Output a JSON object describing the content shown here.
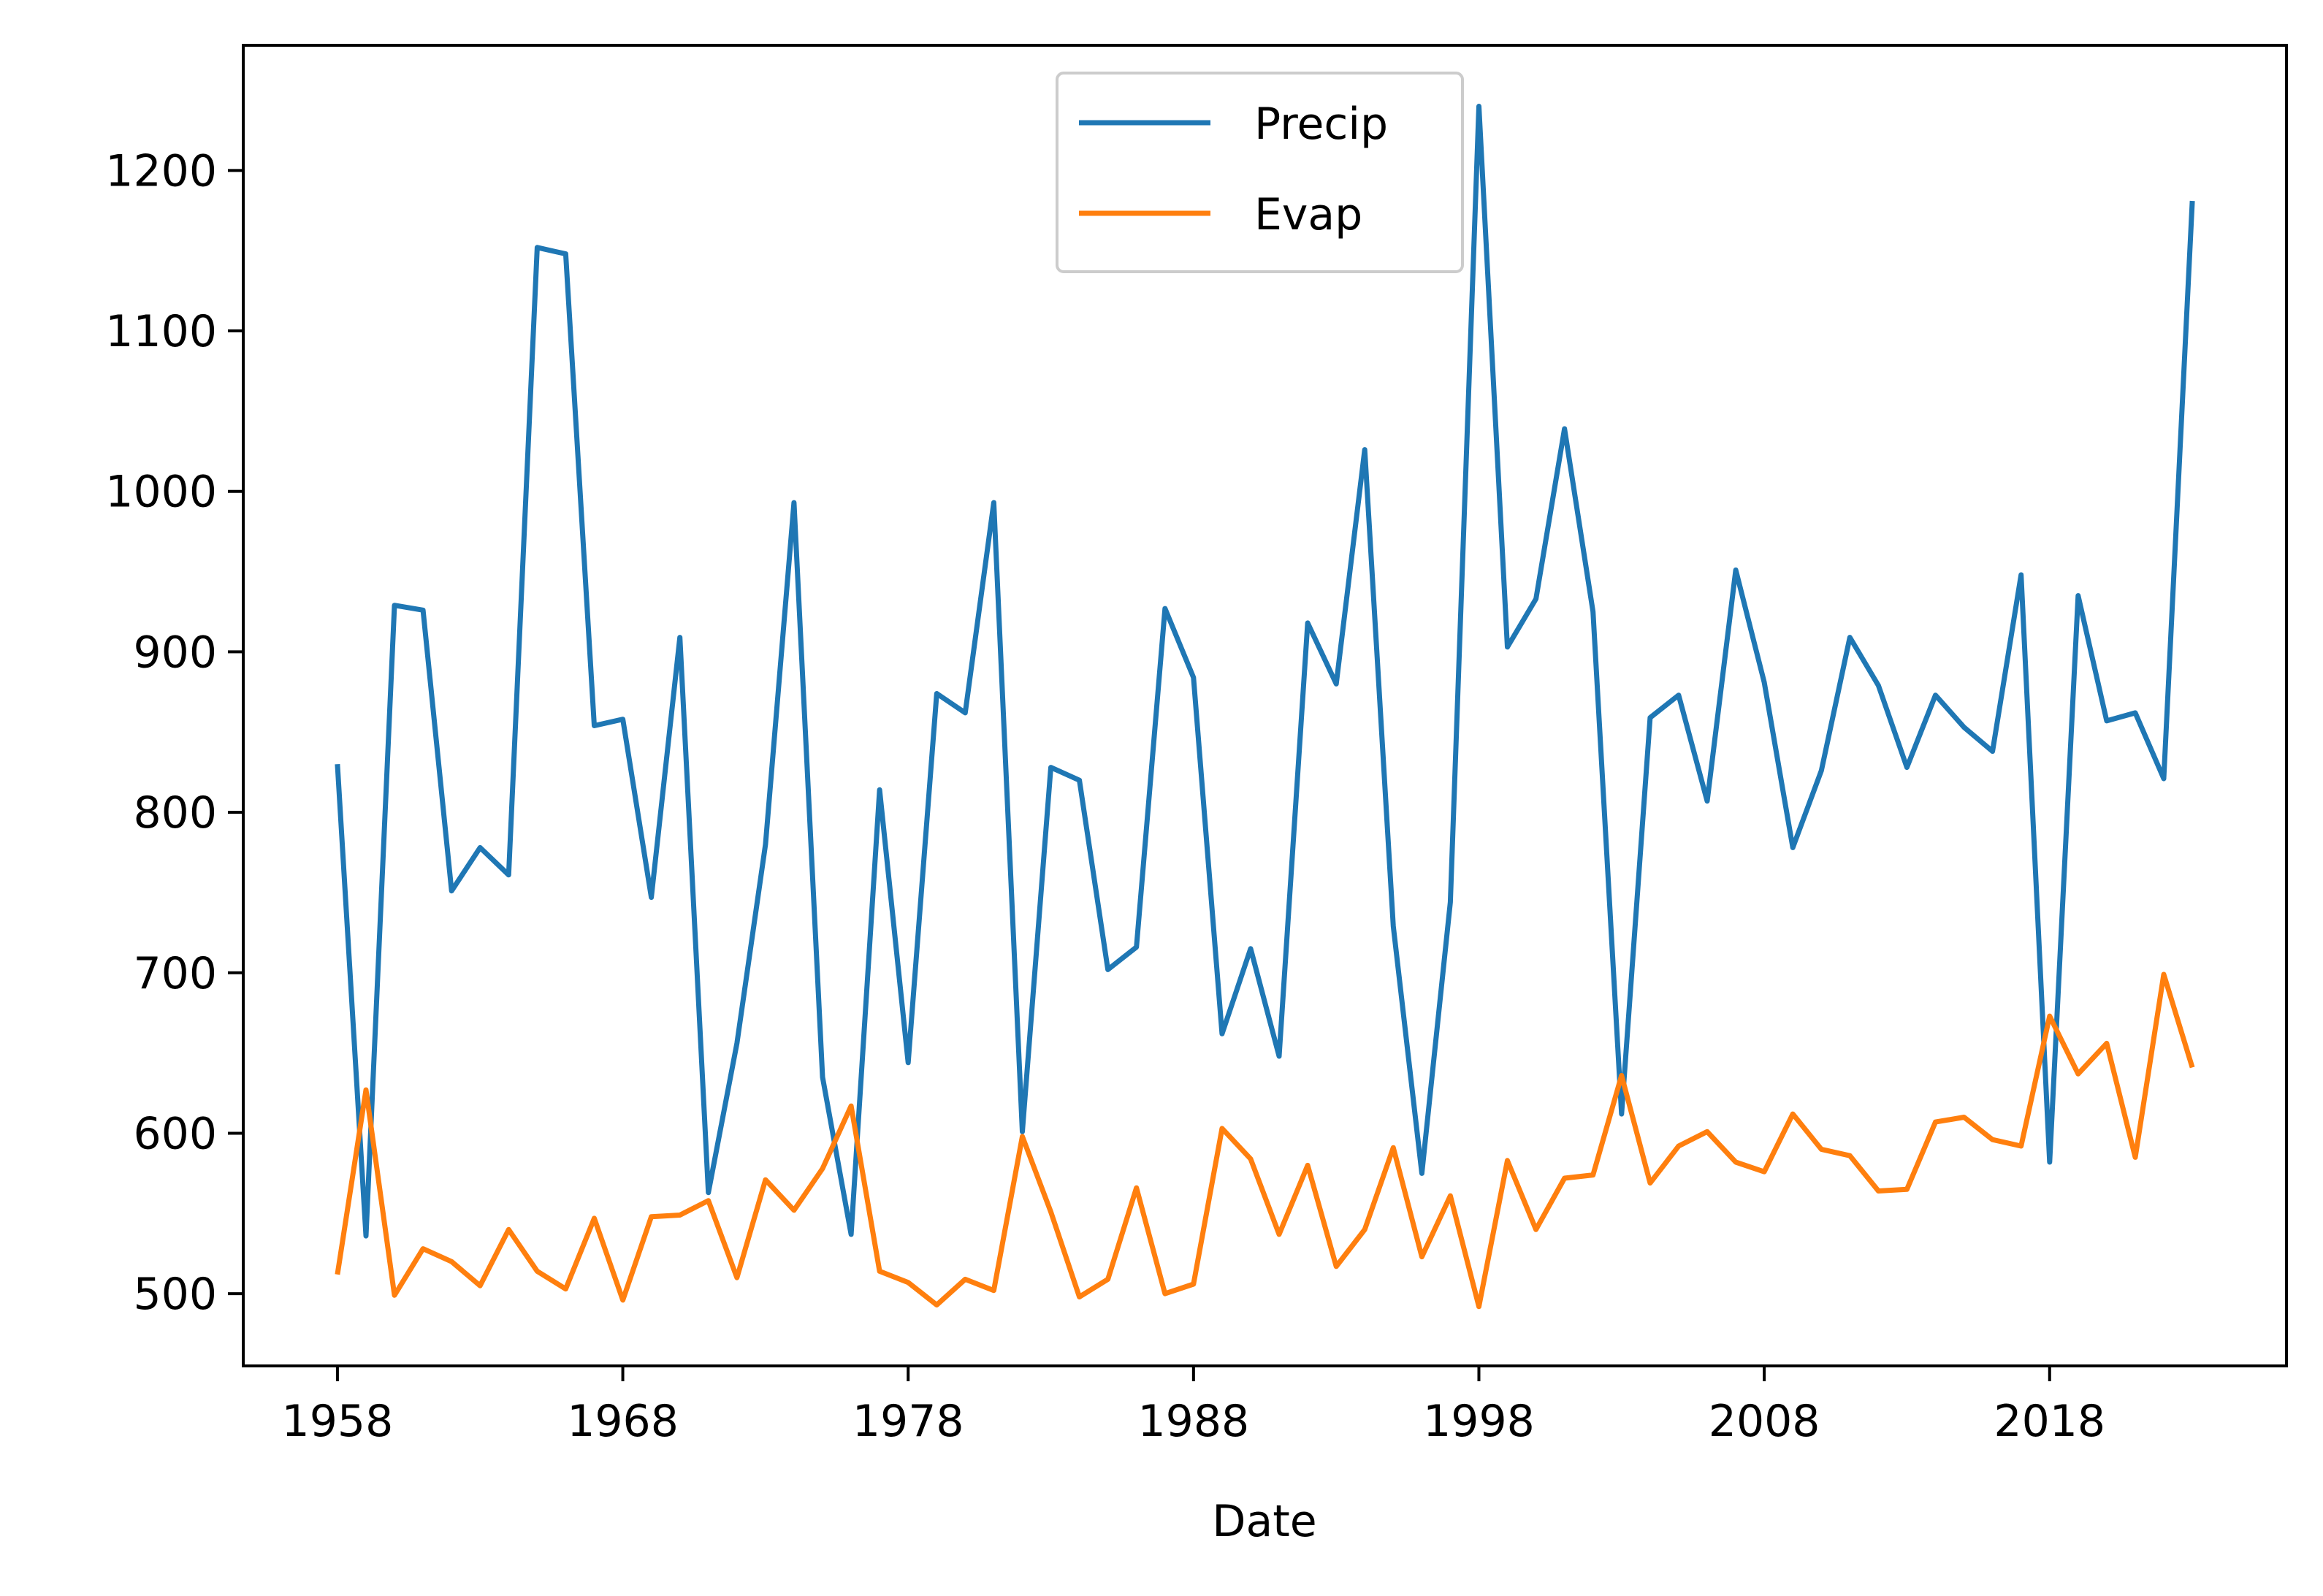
{
  "chart_data": {
    "type": "line",
    "title": "",
    "xlabel": "Date",
    "ylabel": "",
    "x": [
      1958,
      1959,
      1960,
      1961,
      1962,
      1963,
      1964,
      1965,
      1966,
      1967,
      1968,
      1969,
      1970,
      1971,
      1972,
      1973,
      1974,
      1975,
      1976,
      1977,
      1978,
      1979,
      1980,
      1981,
      1982,
      1983,
      1984,
      1985,
      1986,
      1987,
      1988,
      1989,
      1990,
      1991,
      1992,
      1993,
      1994,
      1995,
      1996,
      1997,
      1998,
      1999,
      2000,
      2001,
      2002,
      2003,
      2004,
      2005,
      2006,
      2007,
      2008,
      2009,
      2010,
      2011,
      2012,
      2013,
      2014,
      2015,
      2016,
      2017,
      2018,
      2019,
      2020,
      2021,
      2022,
      2023
    ],
    "series": [
      {
        "name": "Precip",
        "color": "#1f77b4",
        "values": [
          830,
          536,
          929,
          926,
          751,
          778,
          761,
          1152,
          1148,
          854,
          858,
          747,
          909,
          563,
          656,
          780,
          993,
          635,
          537,
          814,
          644,
          874,
          862,
          993,
          601,
          828,
          820,
          702,
          716,
          927,
          884,
          662,
          715,
          648,
          918,
          880,
          1026,
          729,
          575,
          744,
          1240,
          903,
          933,
          1039,
          925,
          612,
          859,
          873,
          807,
          951,
          881,
          778,
          826,
          909,
          879,
          828,
          873,
          853,
          838,
          948,
          582,
          935,
          857,
          862,
          821,
          1181
        ]
      },
      {
        "name": "Evap",
        "color": "#ff7f0e",
        "values": [
          512,
          627,
          499,
          528,
          520,
          505,
          540,
          514,
          503,
          547,
          496,
          548,
          549,
          558,
          510,
          571,
          552,
          578,
          617,
          514,
          507,
          493,
          509,
          502,
          598,
          551,
          498,
          509,
          566,
          500,
          506,
          603,
          584,
          537,
          580,
          517,
          540,
          591,
          523,
          561,
          492,
          583,
          540,
          572,
          574,
          636,
          569,
          592,
          601,
          582,
          576,
          612,
          590,
          586,
          564,
          565,
          607,
          610,
          596,
          592,
          673,
          637,
          656,
          585,
          699,
          641
        ]
      }
    ],
    "xticks": [
      1958,
      1968,
      1978,
      1988,
      1998,
      2008,
      2018
    ],
    "xlim": [
      1954.7,
      2026.3
    ],
    "yticks": [
      500,
      600,
      700,
      800,
      900,
      1000,
      1100,
      1200
    ],
    "ylim": [
      455,
      1278
    ],
    "grid": false,
    "legend_placement": "upper-center"
  }
}
